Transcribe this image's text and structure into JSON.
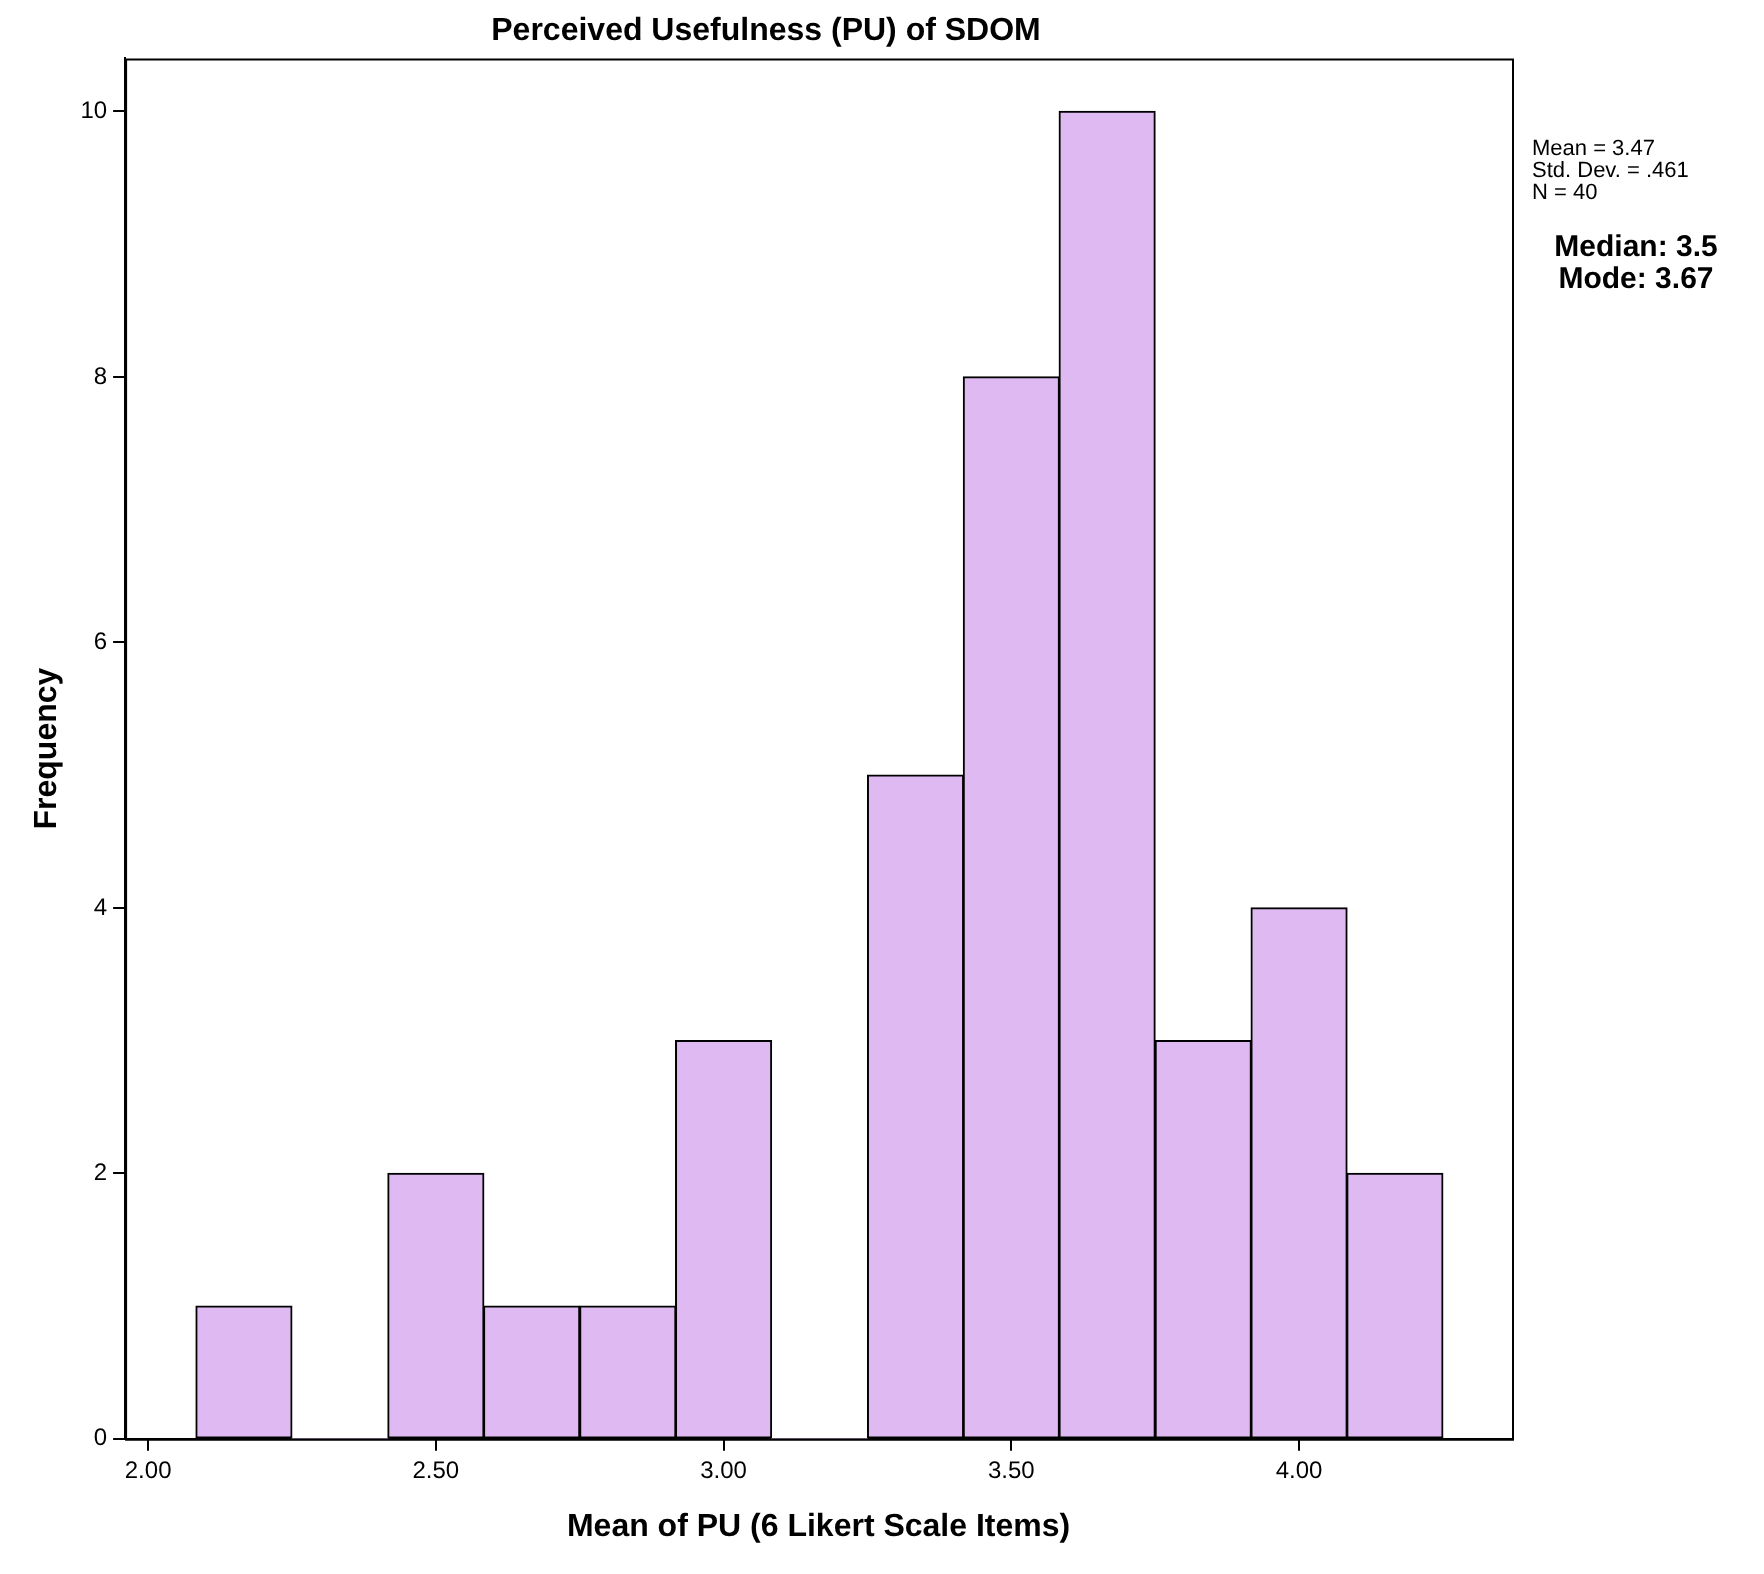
{
  "chart_data": {
    "type": "histogram",
    "title": "Perceived Usefulness (PU) of SDOM",
    "xlabel": "Mean of PU (6 Likert Scale Items)",
    "ylabel": "Frequency",
    "bins": [
      2.083,
      2.25,
      2.417,
      2.583,
      2.75,
      2.917,
      3.083,
      3.25,
      3.417,
      3.583,
      3.75,
      3.917,
      4.083,
      4.25
    ],
    "values": [
      1,
      0,
      2,
      1,
      1,
      3,
      0,
      5,
      8,
      10,
      3,
      4,
      2
    ],
    "color": "#dfb9f2",
    "xlim": [
      1.96,
      4.37
    ],
    "xticks": [
      {
        "value": 2,
        "label": "2.00"
      },
      {
        "value": 2.5,
        "label": "2.50"
      },
      {
        "value": 3,
        "label": "3.00"
      },
      {
        "value": 3.5,
        "label": "3.50"
      },
      {
        "value": 4,
        "label": "4.00"
      }
    ],
    "ylim": [
      0,
      10.4
    ],
    "yticks": [
      0,
      2,
      4,
      6,
      8,
      10
    ],
    "grid": false,
    "legend": false,
    "annotations": [
      "Mean = 3.47",
      "Std. Dev. = .461",
      "N = 40",
      "Median: 3.5",
      "Mode: 3.67"
    ]
  }
}
